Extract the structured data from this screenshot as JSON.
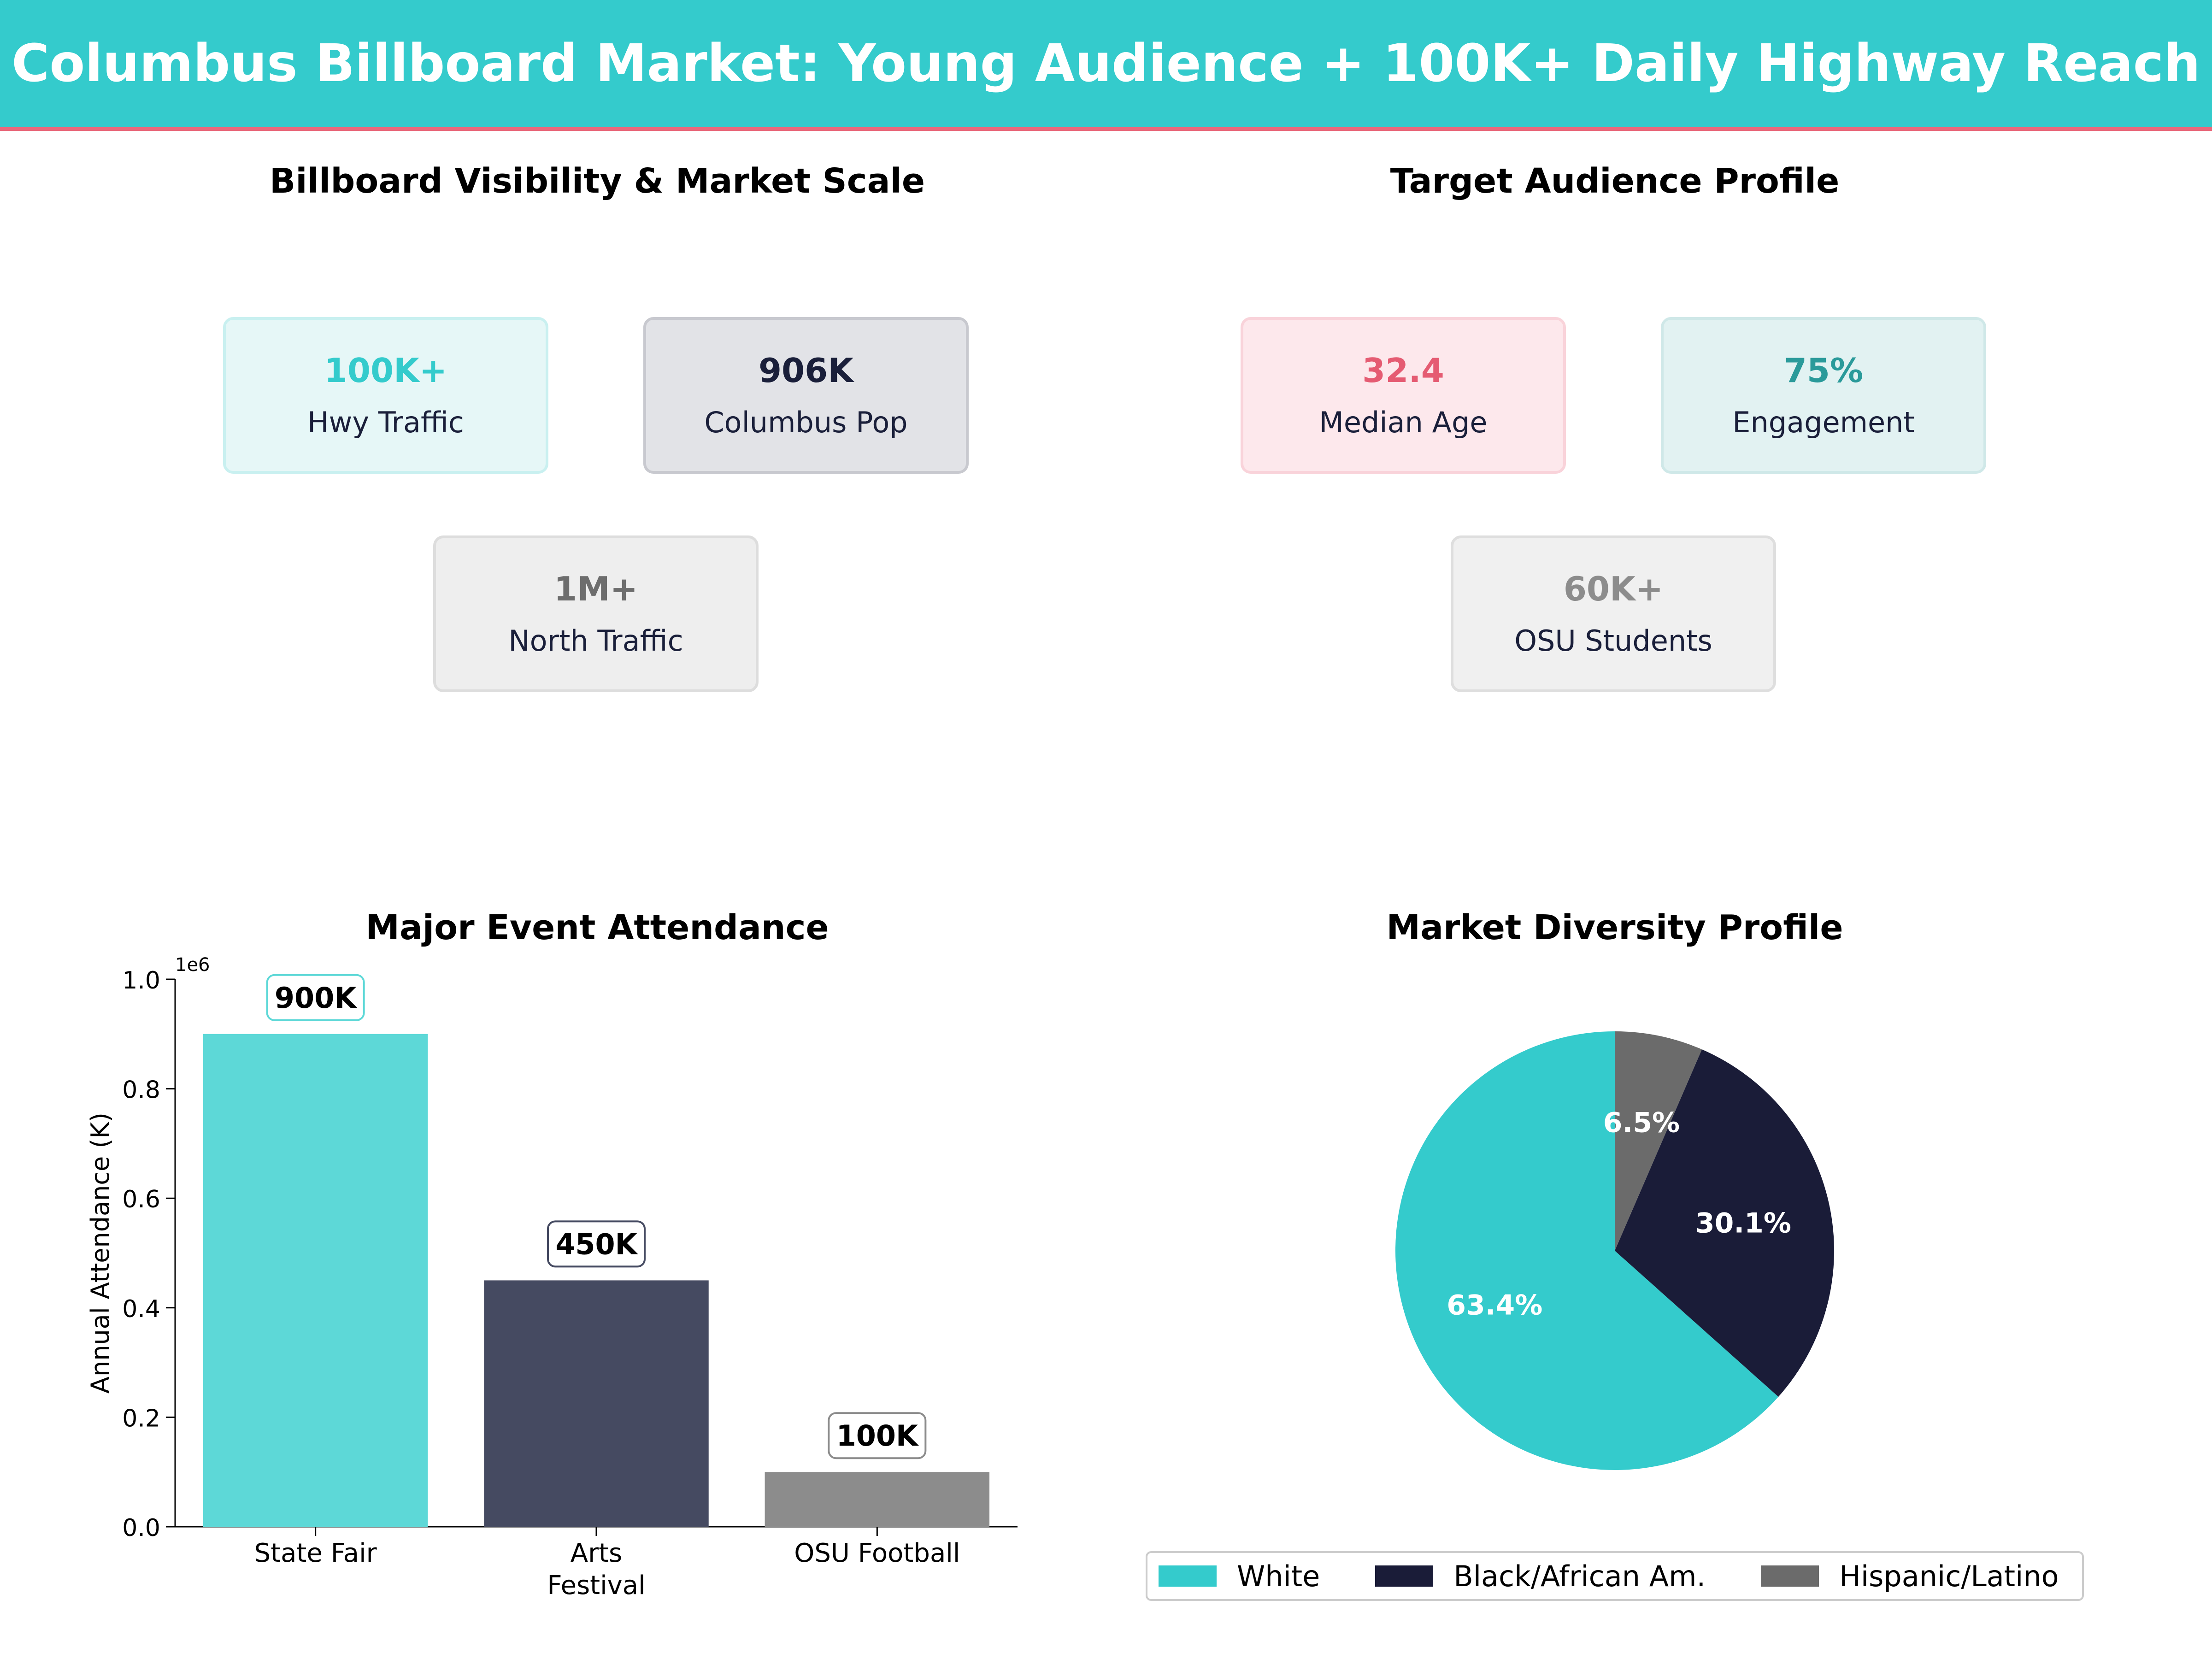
{
  "header": {
    "title": "Columbus Billboard Market: Young Audience + 100K+ Daily Highway Reach"
  },
  "panels": {
    "visibility": {
      "title": "Billboard Visibility & Market Scale",
      "cards": [
        {
          "value": "100K+",
          "label": "Hwy Traffic",
          "value_color": "#34cbcc",
          "bg": "#e6f7f7",
          "border": "#c9f0f0"
        },
        {
          "value": "906K",
          "label": "Columbus Pop",
          "value_color": "#1a1f3a",
          "bg": "#e2e3e7",
          "border": "#c8c9cf"
        },
        {
          "value": "1M+",
          "label": "North Traffic",
          "value_color": "#6d6d6d",
          "bg": "#eeeeee",
          "border": "#dddddd"
        }
      ]
    },
    "audience": {
      "title": "Target Audience Profile",
      "cards": [
        {
          "value": "32.4",
          "label": "Median Age",
          "value_color": "#e55b72",
          "bg": "#fde8ec",
          "border": "#f9d3da"
        },
        {
          "value": "75%",
          "label": "Engagement",
          "value_color": "#2a9a9a",
          "bg": "#e2f2f2",
          "border": "#cfe8e8"
        },
        {
          "value": "60K+",
          "label": "OSU Students",
          "value_color": "#8c8c8c",
          "bg": "#f0f0f0",
          "border": "#dedede"
        }
      ]
    }
  },
  "chart_data": [
    {
      "type": "bar",
      "title": "Major Event Attendance",
      "categories": [
        "State Fair",
        "Arts\nFestival",
        "OSU Football"
      ],
      "values": [
        900000,
        450000,
        100000
      ],
      "data_labels": [
        "900K",
        "450K",
        "100K"
      ],
      "colors": [
        "#5dd8d7",
        "#454a61",
        "#8c8c8c"
      ],
      "ylabel": "Annual Attendance (K)",
      "ylim": [
        0,
        1000000
      ],
      "yticks": [
        0,
        0.2,
        0.4,
        0.6,
        0.8,
        1.0
      ],
      "ytick_labels": [
        "0.0",
        "0.2",
        "0.4",
        "0.6",
        "0.8",
        "1.0"
      ],
      "y_scale_label": "1e6",
      "grid": false
    },
    {
      "type": "pie",
      "title": "Market Diversity Profile",
      "slices": [
        {
          "label": "White",
          "value": 63.4,
          "display": "63.4%",
          "color": "#34cbcc"
        },
        {
          "label": "Black/African Am.",
          "value": 30.1,
          "display": "30.1%",
          "color": "#1a1c38"
        },
        {
          "label": "Hispanic/Latino",
          "value": 6.5,
          "display": "6.5%",
          "color": "#6b6b6b"
        }
      ],
      "legend_position": "bottom"
    }
  ]
}
